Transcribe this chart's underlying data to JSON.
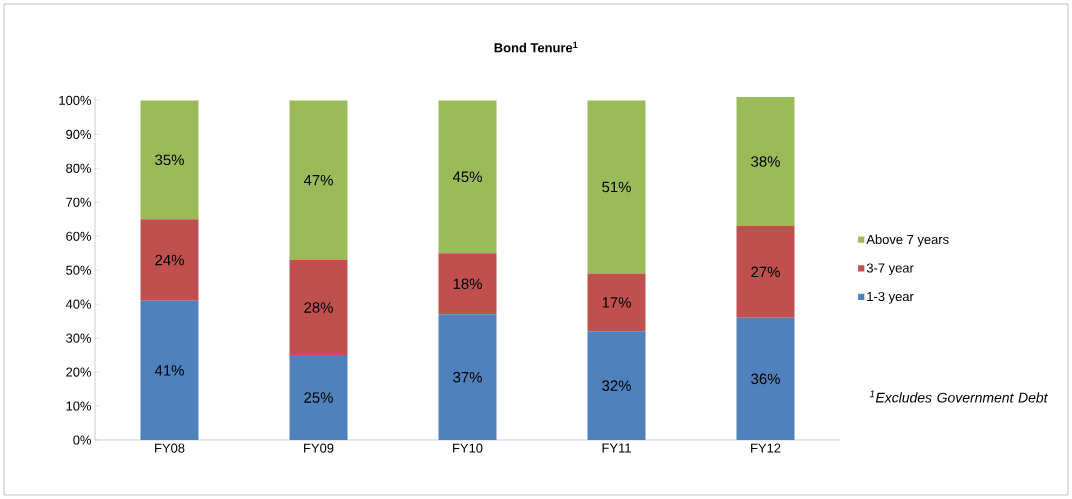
{
  "chart_data": {
    "type": "bar",
    "stacked": true,
    "title": "Bond Tenure$^{1}$",
    "categories": [
      "FY08",
      "FY09",
      "FY10",
      "FY11",
      "FY12"
    ],
    "series": [
      {
        "name": "1-3 year",
        "color": "#4f81bd",
        "values": [
          41,
          25,
          37,
          32,
          36
        ],
        "value_labels": [
          "41%",
          "25%",
          "37%",
          "32%",
          "36%"
        ]
      },
      {
        "name": "3-7 year",
        "color": "#c0504d",
        "values": [
          24,
          28,
          18,
          17,
          27
        ],
        "value_labels": [
          "24%",
          "28%",
          "18%",
          "17%",
          "27%"
        ]
      },
      {
        "name": "Above 7 years",
        "color": "#9bbb59",
        "values": [
          35,
          47,
          45,
          51,
          38
        ],
        "value_labels": [
          "35%",
          "47%",
          "45%",
          "51%",
          "38%"
        ]
      }
    ],
    "ylim": [
      0,
      101
    ],
    "yticks": [
      {
        "value": 0,
        "label": "0%"
      },
      {
        "value": 10,
        "label": "10%"
      },
      {
        "value": 20,
        "label": "20%"
      },
      {
        "value": 30,
        "label": "30%"
      },
      {
        "value": 40,
        "label": "40%"
      },
      {
        "value": 50,
        "label": "50%"
      },
      {
        "value": 60,
        "label": "60%"
      },
      {
        "value": 70,
        "label": "70%"
      },
      {
        "value": 80,
        "label": "80%"
      },
      {
        "value": 90,
        "label": "90%"
      },
      {
        "value": 100,
        "label": "100%"
      }
    ],
    "legend": "right",
    "grid": false,
    "annotations": [
      "$^{1}$Excludes Government Debt"
    ]
  }
}
